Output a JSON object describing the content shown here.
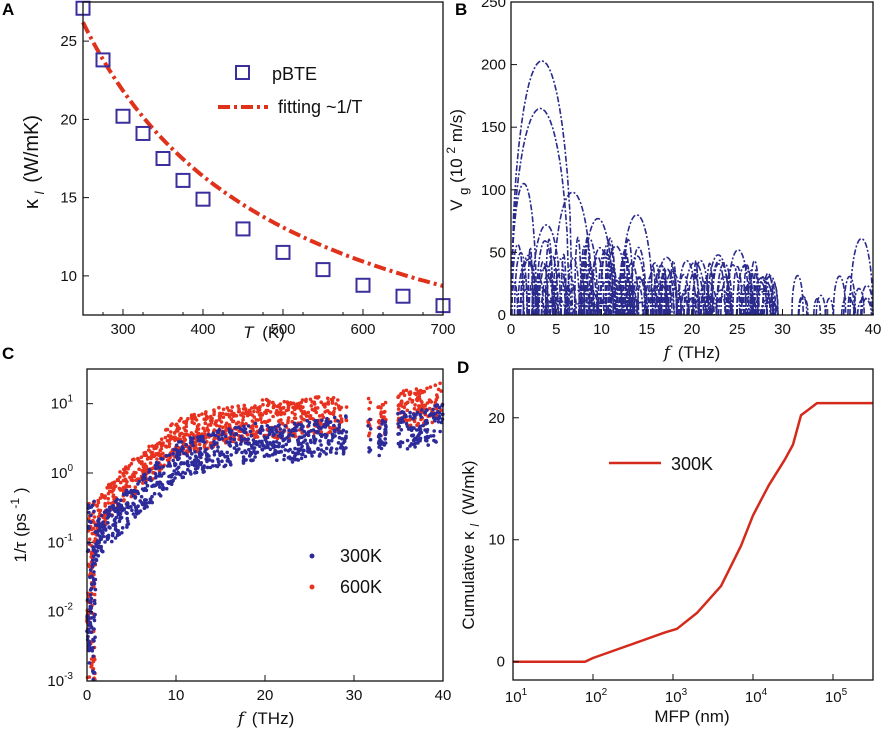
{
  "chart_data": [
    {
      "panel": "A",
      "type": "scatter",
      "xlabel_var": "T",
      "xlabel_unit": "(K)",
      "ylabel_sym": "κ",
      "ylabel_sub": "l",
      "ylabel_unit": "(W/mK)",
      "xlim": [
        250,
        700
      ],
      "ylim": [
        7.5,
        27.5
      ],
      "xticks": [
        300,
        400,
        500,
        600,
        700
      ],
      "xtick_labels": [
        "300",
        "400",
        "500",
        "600",
        "700"
      ],
      "yticks": [
        10,
        15,
        20,
        25
      ],
      "ytick_labels": [
        "10",
        "15",
        "20",
        "25"
      ],
      "series": [
        {
          "name": "pBTE",
          "kind": "markers",
          "x": [
            250,
            275,
            300,
            325,
            350,
            375,
            400,
            450,
            500,
            550,
            600,
            650,
            700
          ],
          "y": [
            27.1,
            23.8,
            20.2,
            19.1,
            17.5,
            16.1,
            14.9,
            13.0,
            11.5,
            10.4,
            9.4,
            8.7,
            8.1
          ]
        },
        {
          "name": "fitting ~1/T",
          "kind": "dashdot",
          "formula": "k = 6550/T",
          "x_range": [
            250,
            700
          ]
        }
      ],
      "legend_position": "top-right",
      "colors": {
        "markers": "#3b2f9e",
        "fit": "#e0311b"
      }
    },
    {
      "panel": "B",
      "type": "line",
      "xlabel_var": "f",
      "xlabel_unit": "(THz)",
      "ylabel": "V",
      "ylabel_sub": "g",
      "ylabel_unit": "(10",
      "ylabel_exp": "2",
      "ylabel_unit2": " m/s)",
      "xlim": [
        0,
        40
      ],
      "ylim": [
        0,
        250
      ],
      "xticks": [
        0,
        5,
        10,
        15,
        20,
        25,
        30,
        35,
        40
      ],
      "xtick_labels": [
        "0",
        "5",
        "10",
        "15",
        "20",
        "25",
        "30",
        "35",
        "40"
      ],
      "yticks": [
        0,
        50,
        100,
        150,
        200,
        250
      ],
      "ytick_labels": [
        "0",
        "50",
        "100",
        "150",
        "200",
        "250"
      ],
      "series": [
        {
          "name": "branch-peaks",
          "x": [
            2.3,
            2.8,
            6.8,
            9.6,
            13.9,
            25.1,
            38.8,
            0.5,
            3.9,
            11.6,
            17.2,
            20.3,
            22.9,
            27.8
          ],
          "y": [
            203,
            165,
            98,
            77,
            80,
            52,
            61,
            105,
            72,
            55,
            46,
            42,
            48,
            30
          ]
        }
      ],
      "color": "#2a2a8c"
    },
    {
      "panel": "C",
      "type": "scatter",
      "xlabel_var": "f",
      "xlabel_unit": "(THz)",
      "ylabel_main": "1/τ (ps",
      "ylabel_exp": "-1",
      "ylabel_end": ")",
      "xlim": [
        0,
        40
      ],
      "ylim_log10": [
        -3,
        1.5
      ],
      "xticks": [
        0,
        10,
        20,
        30,
        40
      ],
      "xtick_labels": [
        "0",
        "10",
        "20",
        "30",
        "40"
      ],
      "yticks_log10": [
        -3,
        -2,
        -1,
        0,
        1
      ],
      "ytick_base": [
        "10",
        "10",
        "10",
        "10",
        "10"
      ],
      "ytick_exp": [
        "-3",
        "-2",
        "-1",
        "0",
        "1"
      ],
      "series": [
        {
          "name": "300K",
          "color": "#2d2a9a",
          "x": [
            0.3,
            0.6,
            1,
            2,
            3,
            5,
            8,
            10,
            13,
            15,
            18,
            20,
            23,
            25,
            28,
            30,
            33,
            35,
            38,
            40
          ],
          "y": [
            0.005,
            0.04,
            0.1,
            0.15,
            0.2,
            0.35,
            0.8,
            1.5,
            1.9,
            2.3,
            2.6,
            3.0,
            2.7,
            3.2,
            3.5,
            3.6,
            3.0,
            4.0,
            4.5,
            5.5
          ]
        },
        {
          "name": "600K",
          "color": "#e8311e",
          "x": [
            0.3,
            0.6,
            1,
            2,
            3,
            5,
            8,
            10,
            13,
            15,
            18,
            20,
            23,
            25,
            28,
            30,
            33,
            35,
            38,
            40
          ],
          "y": [
            0.01,
            0.08,
            0.2,
            0.3,
            0.45,
            0.8,
            1.8,
            3.2,
            4.0,
            4.8,
            5.5,
            6.2,
            5.5,
            6.5,
            7.0,
            7.0,
            6.0,
            8.0,
            9.0,
            11
          ]
        }
      ],
      "legend_position": "bottom-right"
    },
    {
      "panel": "D",
      "type": "line",
      "xlabel": "MFP (nm)",
      "ylabel_main": "Cumulative κ",
      "ylabel_sub": "l",
      "ylabel_unit": "(W/mk)",
      "xlim_log10": [
        1,
        5.5
      ],
      "ylim": [
        -1.5,
        24
      ],
      "xticks_log10": [
        1,
        2,
        3,
        4,
        5
      ],
      "xtick_base": [
        "10",
        "10",
        "10",
        "10",
        "10"
      ],
      "xtick_exp": [
        "1",
        "2",
        "3",
        "4",
        "5"
      ],
      "yticks": [
        0,
        10,
        20
      ],
      "ytick_labels": [
        "0",
        "10",
        "20"
      ],
      "series": [
        {
          "name": "300K",
          "color": "#d42a1c",
          "log10x": [
            1,
            1.9,
            2.0,
            2.3,
            2.6,
            2.9,
            3.05,
            3.3,
            3.6,
            3.85,
            4.0,
            4.2,
            4.4,
            4.5,
            4.6,
            4.7,
            4.8,
            5.5
          ],
          "y": [
            0,
            0,
            0.3,
            1.0,
            1.7,
            2.4,
            2.7,
            4.0,
            6.2,
            9.5,
            12.0,
            14.5,
            16.6,
            17.8,
            20.2,
            20.7,
            21.2,
            21.2
          ]
        }
      ],
      "legend_position": "top-center"
    }
  ],
  "panel_labels": {
    "a": "A",
    "b": "B",
    "c": "C",
    "d": "D"
  },
  "legends": {
    "a_markers": "pBTE",
    "a_fit": "fitting ~1/T",
    "c_300": "300K",
    "c_600": "600K",
    "d_300": "300K"
  }
}
